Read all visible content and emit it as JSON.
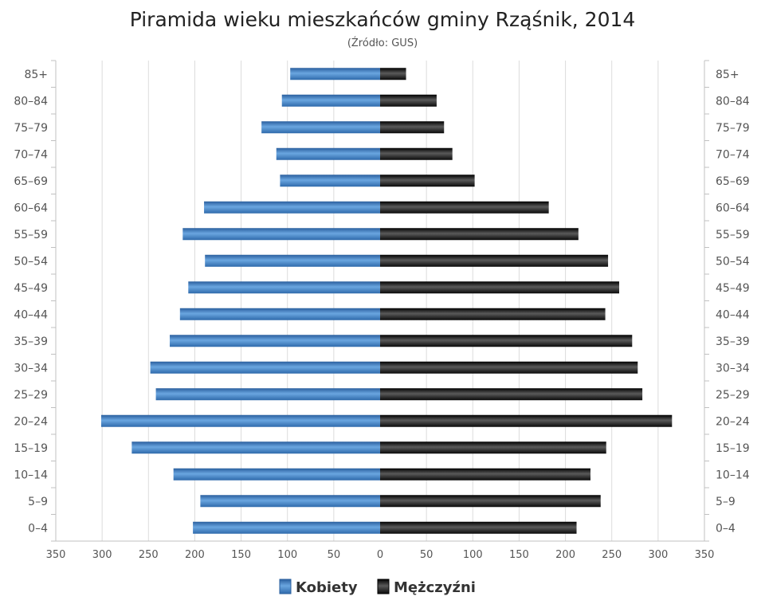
{
  "chart_data": {
    "type": "bar",
    "title": "Piramida wieku mieszkańców gminy Rząśnik, 2014",
    "subtitle": "(Źródło: GUS)",
    "categories": [
      "85+",
      "80–84",
      "75–79",
      "70–74",
      "65–69",
      "60–64",
      "55–59",
      "50–54",
      "45–49",
      "40–44",
      "35–39",
      "30–34",
      "25–29",
      "20–24",
      "15–19",
      "10–14",
      "5–9",
      "0–4"
    ],
    "series": [
      {
        "name": "Kobiety",
        "color": "#3a78b8",
        "values": [
          97,
          106,
          128,
          112,
          108,
          190,
          213,
          189,
          207,
          216,
          227,
          248,
          242,
          301,
          268,
          223,
          194,
          202
        ]
      },
      {
        "name": "Mężczyźni",
        "color": "#111111",
        "values": [
          28,
          61,
          69,
          78,
          102,
          182,
          214,
          246,
          258,
          243,
          272,
          278,
          283,
          315,
          244,
          227,
          238,
          212
        ]
      }
    ],
    "xlim": [
      -350,
      350
    ],
    "x_ticks": [
      "350",
      "300",
      "250",
      "200",
      "150",
      "100",
      "50",
      "0",
      "50",
      "100",
      "150",
      "200",
      "250",
      "300",
      "350"
    ],
    "grid": true,
    "legend_position": "bottom-center"
  }
}
